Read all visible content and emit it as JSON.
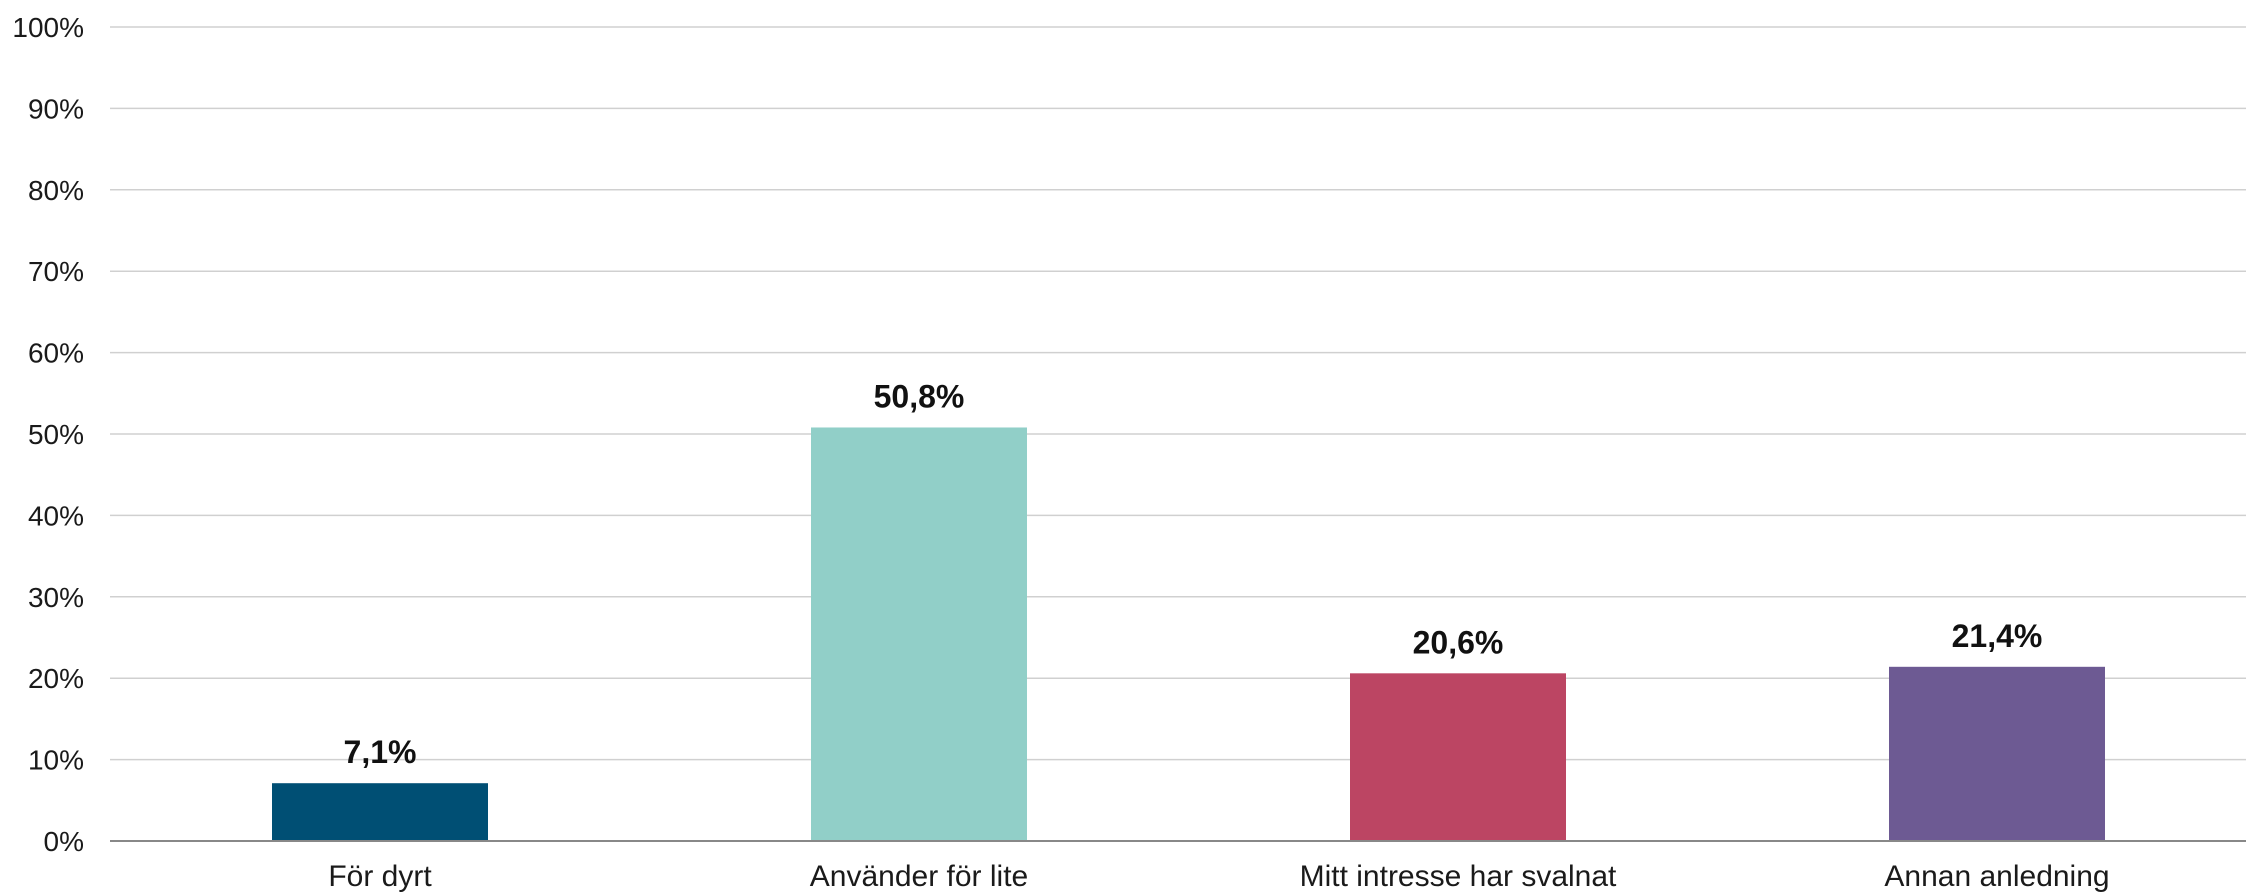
{
  "chart_data": {
    "type": "bar",
    "categories": [
      "För dyrt",
      "Använder för lite",
      "Mitt intresse har svalnat",
      "Annan anledning"
    ],
    "values": [
      7.1,
      50.8,
      20.6,
      21.4
    ],
    "data_labels": [
      "7,1%",
      "50,8%",
      "20,6%",
      "21,4%"
    ],
    "colors": [
      "#004f74",
      "#91cfc8",
      "#bc4563",
      "#6d5a93"
    ],
    "ylim": [
      0,
      100
    ],
    "yticks": [
      0,
      10,
      20,
      30,
      40,
      50,
      60,
      70,
      80,
      90,
      100
    ],
    "ytick_labels": [
      "0%",
      "10%",
      "20%",
      "30%",
      "40%",
      "50%",
      "60%",
      "70%",
      "80%",
      "90%",
      "100%"
    ],
    "grid": true,
    "legend": "none",
    "title": "",
    "xlabel": "",
    "ylabel": ""
  }
}
